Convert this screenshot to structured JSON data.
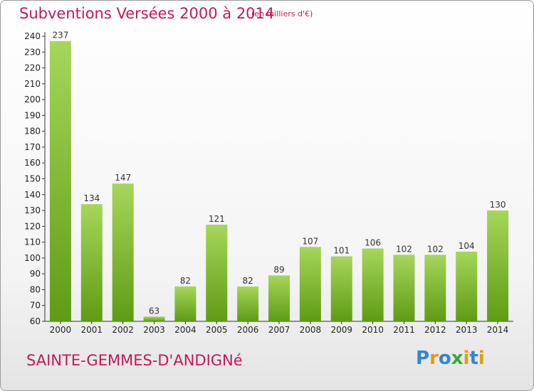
{
  "header": {
    "title": "Subventions Versées 2000 à 2014",
    "subtitle": "(en milliers d'€)"
  },
  "footer": {
    "commune": "SAINTE-GEMMES-D'ANDIGNé",
    "logo": "Proxiti"
  },
  "colors": {
    "bar_light": "#a6d65a",
    "bar_dark": "#5e9c14",
    "title": "#c2185b",
    "logo_letters": [
      "#2f86d6",
      "#e69a12",
      "#2f86d6",
      "#3aaa35",
      "#e69a12",
      "#2f86d6",
      "#e69a12"
    ]
  },
  "chart_data": {
    "type": "bar",
    "title": "Subventions Versées 2000 à 2014",
    "subtitle": "(en milliers d'€)",
    "categories": [
      "2000",
      "2001",
      "2002",
      "2003",
      "2004",
      "2005",
      "2006",
      "2007",
      "2008",
      "2009",
      "2010",
      "2011",
      "2012",
      "2013",
      "2014"
    ],
    "values": [
      237,
      134,
      147,
      63,
      82,
      121,
      82,
      89,
      107,
      101,
      106,
      102,
      102,
      104,
      130
    ],
    "ylim": [
      60,
      240
    ],
    "yticks": [
      60,
      70,
      80,
      90,
      100,
      110,
      120,
      130,
      140,
      150,
      160,
      170,
      180,
      190,
      200,
      210,
      220,
      230,
      240
    ],
    "grid": false,
    "data_labels": true
  }
}
